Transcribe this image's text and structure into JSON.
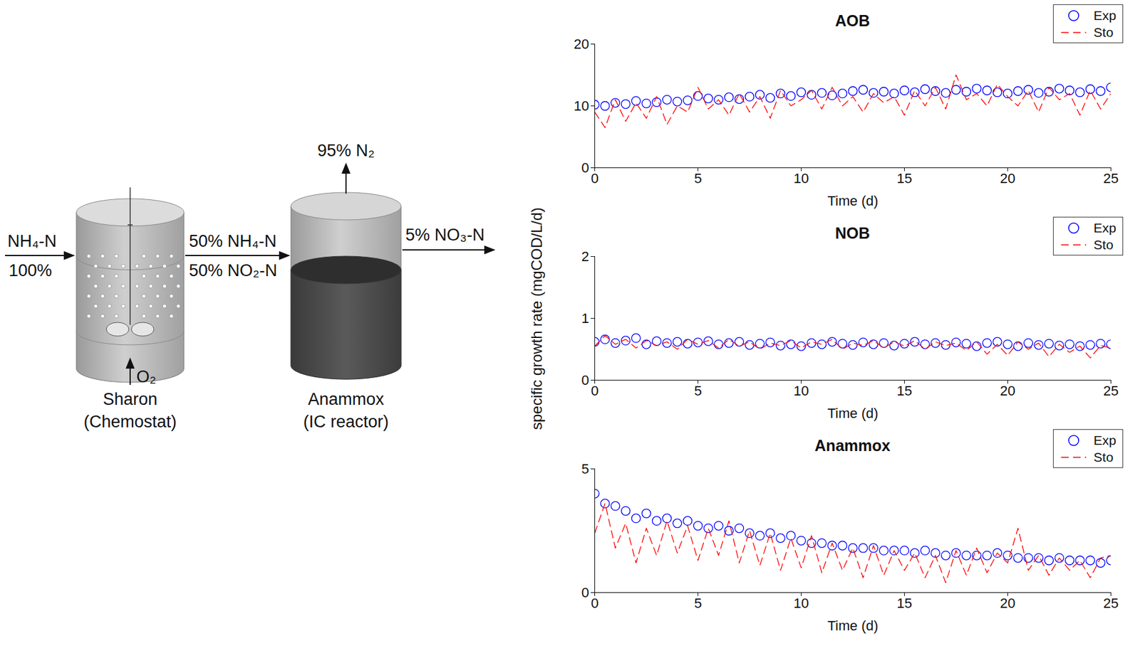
{
  "diagram": {
    "reactors": [
      {
        "name": "Sharon",
        "subtitle": "(Chemostat)"
      },
      {
        "name": "Anammox",
        "subtitle": "(IC reactor)"
      }
    ],
    "influent": {
      "species": "NH₄-N",
      "percent": "100%"
    },
    "intermediate": [
      "50% NH₄-N",
      "50% NO₂-N"
    ],
    "gas": "95% N₂",
    "effluent": "5% NO₃-N",
    "aeration": "O₂"
  },
  "shared_ylabel": "specific growth rate (mgCOD/L/d)",
  "chart_data": [
    {
      "type": "line",
      "title": "AOB",
      "xlabel": "Time (d)",
      "xlim": [
        0,
        25
      ],
      "xticks": [
        0,
        5,
        10,
        15,
        20,
        25
      ],
      "ylim": [
        0,
        20
      ],
      "yticks": [
        0,
        10,
        20
      ],
      "grid": false,
      "legend": "top right",
      "x": [
        0,
        0.5,
        1,
        1.5,
        2,
        2.5,
        3,
        3.5,
        4,
        4.5,
        5,
        5.5,
        6,
        6.5,
        7,
        7.5,
        8,
        8.5,
        9,
        9.5,
        10,
        10.5,
        11,
        11.5,
        12,
        12.5,
        13,
        13.5,
        14,
        14.5,
        15,
        15.5,
        16,
        16.5,
        17,
        17.5,
        18,
        18.5,
        19,
        19.5,
        20,
        20.5,
        21,
        21.5,
        22,
        22.5,
        23,
        23.5,
        24,
        24.5,
        25
      ],
      "series": [
        {
          "name": "Exp",
          "color": "#0000ff",
          "marker": "circle",
          "line_style": "none",
          "values": [
            10.2,
            10.0,
            10.5,
            10.3,
            10.8,
            10.4,
            10.6,
            11.0,
            10.7,
            10.9,
            11.6,
            11.2,
            11.0,
            11.4,
            11.1,
            11.5,
            11.8,
            11.3,
            12.0,
            11.6,
            12.2,
            11.8,
            12.1,
            11.7,
            12.0,
            12.4,
            12.6,
            12.1,
            12.3,
            12.0,
            12.5,
            12.2,
            12.7,
            12.4,
            12.1,
            12.6,
            12.3,
            12.8,
            12.5,
            12.2,
            12.0,
            12.4,
            12.6,
            12.1,
            12.3,
            12.8,
            12.5,
            12.2,
            12.7,
            12.4,
            13.0
          ]
        },
        {
          "name": "Sto",
          "color": "#ff0000",
          "marker": "none",
          "line_style": "dashed",
          "values": [
            9.0,
            6.5,
            11.0,
            7.5,
            10.5,
            8.0,
            11.5,
            7.0,
            10.0,
            9.0,
            13.0,
            9.5,
            11.0,
            8.5,
            12.0,
            9.0,
            11.5,
            8.0,
            12.5,
            10.0,
            11.0,
            12.5,
            9.5,
            13.0,
            10.0,
            11.5,
            9.0,
            12.0,
            10.5,
            11.5,
            8.5,
            12.5,
            10.0,
            13.0,
            9.5,
            15.0,
            11.0,
            12.0,
            10.0,
            13.5,
            11.5,
            10.0,
            12.5,
            9.0,
            13.0,
            11.0,
            12.0,
            8.5,
            12.5,
            9.5,
            12.0
          ]
        }
      ]
    },
    {
      "type": "line",
      "title": "NOB",
      "xlabel": "Time (d)",
      "xlim": [
        0,
        25
      ],
      "xticks": [
        0,
        5,
        10,
        15,
        20,
        25
      ],
      "ylim": [
        0,
        2
      ],
      "yticks": [
        0,
        1,
        2
      ],
      "grid": false,
      "legend": "top right",
      "x": [
        0,
        0.5,
        1,
        1.5,
        2,
        2.5,
        3,
        3.5,
        4,
        4.5,
        5,
        5.5,
        6,
        6.5,
        7,
        7.5,
        8,
        8.5,
        9,
        9.5,
        10,
        10.5,
        11,
        11.5,
        12,
        12.5,
        13,
        13.5,
        14,
        14.5,
        15,
        15.5,
        16,
        16.5,
        17,
        17.5,
        18,
        18.5,
        19,
        19.5,
        20,
        20.5,
        21,
        21.5,
        22,
        22.5,
        23,
        23.5,
        24,
        24.5,
        25
      ],
      "series": [
        {
          "name": "Exp",
          "color": "#0000ff",
          "marker": "circle",
          "line_style": "none",
          "values": [
            0.62,
            0.66,
            0.6,
            0.64,
            0.68,
            0.58,
            0.63,
            0.6,
            0.62,
            0.59,
            0.61,
            0.63,
            0.58,
            0.6,
            0.62,
            0.57,
            0.59,
            0.61,
            0.56,
            0.58,
            0.55,
            0.6,
            0.58,
            0.62,
            0.59,
            0.57,
            0.61,
            0.58,
            0.6,
            0.56,
            0.59,
            0.62,
            0.58,
            0.6,
            0.57,
            0.61,
            0.59,
            0.55,
            0.6,
            0.62,
            0.58,
            0.55,
            0.6,
            0.57,
            0.59,
            0.56,
            0.58,
            0.55,
            0.57,
            0.59,
            0.58
          ]
        },
        {
          "name": "Sto",
          "color": "#ff0000",
          "marker": "none",
          "line_style": "dashed",
          "values": [
            0.55,
            0.72,
            0.58,
            0.66,
            0.52,
            0.64,
            0.56,
            0.62,
            0.5,
            0.66,
            0.58,
            0.64,
            0.52,
            0.66,
            0.55,
            0.62,
            0.5,
            0.6,
            0.56,
            0.64,
            0.52,
            0.62,
            0.58,
            0.66,
            0.5,
            0.6,
            0.56,
            0.64,
            0.52,
            0.62,
            0.55,
            0.64,
            0.5,
            0.62,
            0.56,
            0.6,
            0.48,
            0.62,
            0.42,
            0.58,
            0.4,
            0.62,
            0.5,
            0.6,
            0.38,
            0.58,
            0.45,
            0.55,
            0.36,
            0.56,
            0.52
          ]
        }
      ]
    },
    {
      "type": "line",
      "title": "Anammox",
      "xlabel": "Time (d)",
      "xlim": [
        0,
        25
      ],
      "xticks": [
        0,
        5,
        10,
        15,
        20,
        25
      ],
      "ylim": [
        0,
        5
      ],
      "yticks": [
        0,
        5
      ],
      "grid": false,
      "legend": "top right",
      "x": [
        0,
        0.5,
        1,
        1.5,
        2,
        2.5,
        3,
        3.5,
        4,
        4.5,
        5,
        5.5,
        6,
        6.5,
        7,
        7.5,
        8,
        8.5,
        9,
        9.5,
        10,
        10.5,
        11,
        11.5,
        12,
        12.5,
        13,
        13.5,
        14,
        14.5,
        15,
        15.5,
        16,
        16.5,
        17,
        17.5,
        18,
        18.5,
        19,
        19.5,
        20,
        20.5,
        21,
        21.5,
        22,
        22.5,
        23,
        23.5,
        24,
        24.5,
        25
      ],
      "series": [
        {
          "name": "Exp",
          "color": "#0000ff",
          "marker": "circle",
          "line_style": "none",
          "values": [
            4.0,
            3.6,
            3.5,
            3.3,
            3.0,
            3.2,
            2.9,
            3.0,
            2.8,
            2.9,
            2.7,
            2.6,
            2.7,
            2.5,
            2.6,
            2.4,
            2.3,
            2.4,
            2.2,
            2.3,
            2.1,
            2.0,
            2.0,
            1.9,
            1.9,
            1.8,
            1.8,
            1.8,
            1.7,
            1.7,
            1.7,
            1.6,
            1.7,
            1.6,
            1.5,
            1.6,
            1.5,
            1.5,
            1.5,
            1.6,
            1.5,
            1.4,
            1.4,
            1.4,
            1.3,
            1.4,
            1.3,
            1.3,
            1.3,
            1.2,
            1.3
          ]
        },
        {
          "name": "Sto",
          "color": "#ff0000",
          "marker": "none",
          "line_style": "dashed",
          "values": [
            2.4,
            3.6,
            1.8,
            2.8,
            1.2,
            2.6,
            1.5,
            2.9,
            1.6,
            2.7,
            1.3,
            2.6,
            1.5,
            2.9,
            1.2,
            2.5,
            1.1,
            2.4,
            0.9,
            2.2,
            1.0,
            2.3,
            0.8,
            2.0,
            0.9,
            1.8,
            0.6,
            1.9,
            0.7,
            1.7,
            0.9,
            1.6,
            0.6,
            1.5,
            0.4,
            1.7,
            0.7,
            1.8,
            0.8,
            1.6,
            1.2,
            2.6,
            0.9,
            1.5,
            0.7,
            1.4,
            0.9,
            1.3,
            0.6,
            1.4,
            1.5
          ]
        }
      ]
    }
  ]
}
